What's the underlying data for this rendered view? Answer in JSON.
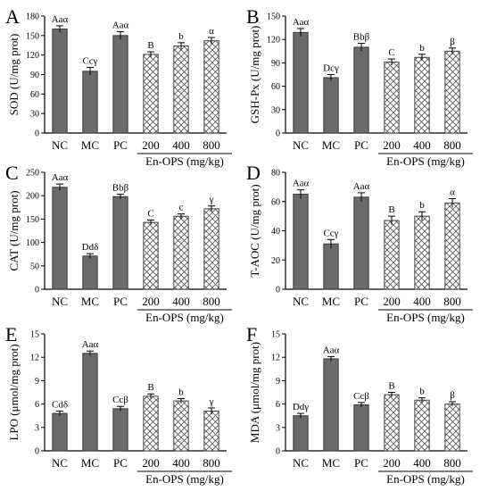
{
  "figure": {
    "colors": {
      "control_bar": "#6b6b6b",
      "treatment_bar": "#ffffff",
      "treatment_hatch": "#555555",
      "axis": "#000000"
    },
    "group_label": "En-OPS (mg/kg)"
  },
  "chart_data": [
    {
      "panel": "A",
      "type": "bar",
      "ylabel": "SOD (U/mg prot)",
      "categories": [
        "NC",
        "MC",
        "PC",
        "200",
        "400",
        "800"
      ],
      "values": [
        160,
        95,
        150,
        121,
        134,
        142
      ],
      "errors": [
        5,
        6,
        6,
        4,
        5,
        5
      ],
      "annotations": [
        "Aaα",
        "Ccγ",
        "Aaα",
        "B",
        "b",
        "α"
      ],
      "ylim": [
        0,
        180
      ],
      "yticks": [
        "0",
        "30",
        "60",
        "90",
        "120",
        "150",
        "180"
      ],
      "tick_values": [
        0,
        30,
        60,
        90,
        120,
        150,
        180
      ],
      "group_label": "En-OPS (mg/kg)"
    },
    {
      "panel": "B",
      "type": "bar",
      "ylabel": "GSH-Px (U/mg prot)",
      "categories": [
        "NC",
        "MC",
        "PC",
        "200",
        "400",
        "800"
      ],
      "values": [
        129,
        71,
        110,
        91,
        97,
        105
      ],
      "errors": [
        5,
        4,
        5,
        4,
        4,
        4
      ],
      "annotations": [
        "Aaα",
        "Dcγ",
        "Bbβ",
        "C",
        "b",
        "β"
      ],
      "ylim": [
        0,
        150
      ],
      "yticks": [
        "0",
        "30",
        "60",
        "90",
        "120",
        "150"
      ],
      "tick_values": [
        0,
        30,
        60,
        90,
        120,
        150
      ],
      "group_label": "En-OPS (mg/kg)"
    },
    {
      "panel": "C",
      "type": "bar",
      "ylabel": "CAT (U/mg prot)",
      "categories": [
        "NC",
        "MC",
        "PC",
        "200",
        "400",
        "800"
      ],
      "values": [
        218,
        71,
        198,
        143,
        156,
        172
      ],
      "errors": [
        7,
        5,
        5,
        5,
        5,
        6
      ],
      "annotations": [
        "Aaα",
        "Ddδ",
        "Bbβ",
        "C",
        "c",
        "γ"
      ],
      "ylim": [
        0,
        250
      ],
      "yticks": [
        "0",
        "50",
        "100",
        "150",
        "200",
        "250"
      ],
      "tick_values": [
        0,
        50,
        100,
        150,
        200,
        250
      ],
      "group_label": "En-OPS (mg/kg)"
    },
    {
      "panel": "D",
      "type": "bar",
      "ylabel": "T-AOC (U/mg prot)",
      "categories": [
        "NC",
        "MC",
        "PC",
        "200",
        "400",
        "800"
      ],
      "values": [
        65,
        31,
        63,
        47,
        50,
        59
      ],
      "errors": [
        3,
        3,
        3,
        3,
        3,
        3
      ],
      "annotations": [
        "Aaα",
        "Ccγ",
        "Aaα",
        "B",
        "b",
        "α"
      ],
      "ylim": [
        0,
        80
      ],
      "yticks": [
        "0",
        "20",
        "40",
        "60",
        "80"
      ],
      "tick_values": [
        0,
        20,
        40,
        60,
        80
      ],
      "group_label": "En-OPS (mg/kg)"
    },
    {
      "panel": "E",
      "type": "bar",
      "ylabel": "LPO (μmol/mg prot)",
      "categories": [
        "NC",
        "MC",
        "PC",
        "200",
        "400",
        "800"
      ],
      "values": [
        4.8,
        12.5,
        5.4,
        7.0,
        6.4,
        5.1
      ],
      "errors": [
        0.3,
        0.3,
        0.3,
        0.3,
        0.3,
        0.4
      ],
      "annotations": [
        "Cdδ",
        "Aaα",
        "Ccβ",
        "B",
        "b",
        "γ"
      ],
      "ylim": [
        0,
        15
      ],
      "yticks": [
        "0",
        "3",
        "6",
        "9",
        "12",
        "15"
      ],
      "tick_values": [
        0,
        3,
        6,
        9,
        12,
        15
      ],
      "group_label": "En-OPS (mg/kg)"
    },
    {
      "panel": "F",
      "type": "bar",
      "ylabel": "MDA (μmol/mg prot)",
      "categories": [
        "NC",
        "MC",
        "PC",
        "200",
        "400",
        "800"
      ],
      "values": [
        4.5,
        11.8,
        5.9,
        7.2,
        6.5,
        6.0
      ],
      "errors": [
        0.3,
        0.3,
        0.3,
        0.3,
        0.3,
        0.3
      ],
      "annotations": [
        "Ddγ",
        "Aaα",
        "Ccβ",
        "B",
        "b",
        "β"
      ],
      "ylim": [
        0,
        15
      ],
      "yticks": [
        "0",
        "3",
        "6",
        "9",
        "12",
        "15"
      ],
      "tick_values": [
        0,
        3,
        6,
        9,
        12,
        15
      ],
      "group_label": "En-OPS (mg/kg)"
    }
  ]
}
